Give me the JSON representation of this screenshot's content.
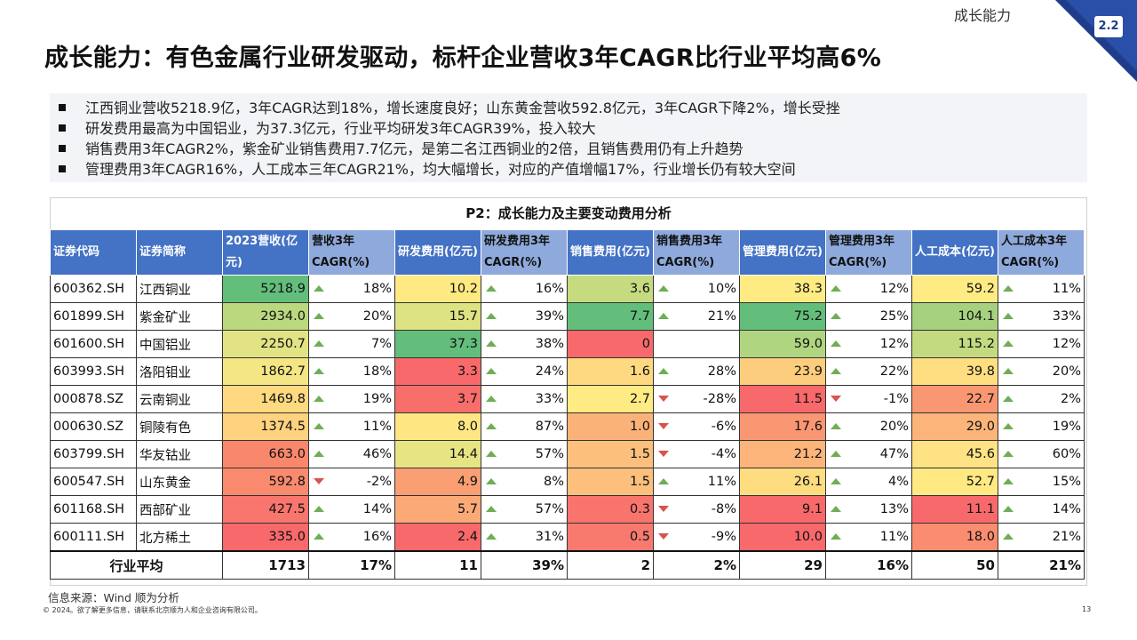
{
  "header": {
    "section_label": "成长能力",
    "section_number": "2.2",
    "title": "成长能力：有色金属行业研发驱动，标杆企业营收3年CAGR比行业平均高6%"
  },
  "bullets": [
    "江西铜业营收5218.9亿，3年CAGR达到18%，增长速度良好；山东黄金营收592.8亿元，3年CAGR下降2%，增长受挫",
    "研发费用最高为中国铝业，为37.3亿元，行业平均研发3年CAGR39%，投入较大",
    "销售费用3年CAGR2%，紫金矿业销售费用7.7亿元，是第二名江西铜业的2倍，且销售费用仍有上升趋势",
    "管理费用3年CAGR16%，人工成本三年CAGR21%，均大幅增长，对应的产值增幅17%，行业增长仍有较大空间"
  ],
  "table": {
    "title": "P2：成长能力及主要变动费用分析",
    "headers": [
      "证券代码",
      "证券简称",
      "2023营收(亿元)",
      "营收3年CAGR(%)",
      "研发费用(亿元)",
      "研发费用3年CAGR(%)",
      "销售费用(亿元)",
      "销售费用3年CAGR(%)",
      "管理费用(亿元)",
      "管理费用3年CAGR(%)",
      "人工成本(亿元)",
      "人工成本3年CAGR(%)"
    ],
    "rows": [
      [
        "600362.SH",
        "江西铜业",
        "5218.9",
        "18%",
        "10.2",
        "16%",
        "3.6",
        "10%",
        "38.3",
        "12%",
        "59.2",
        "11%"
      ],
      [
        "601899.SH",
        "紫金矿业",
        "2934.0",
        "20%",
        "15.7",
        "39%",
        "7.7",
        "21%",
        "75.2",
        "25%",
        "104.1",
        "33%"
      ],
      [
        "601600.SH",
        "中国铝业",
        "2250.7",
        "7%",
        "37.3",
        "38%",
        "0",
        "",
        "59.0",
        "12%",
        "115.2",
        "12%"
      ],
      [
        "603993.SH",
        "洛阳钼业",
        "1862.7",
        "18%",
        "3.3",
        "24%",
        "1.6",
        "28%",
        "23.9",
        "22%",
        "39.8",
        "20%"
      ],
      [
        "000878.SZ",
        "云南铜业",
        "1469.8",
        "19%",
        "3.7",
        "33%",
        "2.7",
        "-28%",
        "11.5",
        "-1%",
        "22.7",
        "2%"
      ],
      [
        "000630.SZ",
        "铜陵有色",
        "1374.5",
        "11%",
        "8.0",
        "87%",
        "1.0",
        "-6%",
        "17.6",
        "20%",
        "29.0",
        "19%"
      ],
      [
        "603799.SH",
        "华友钴业",
        "663.0",
        "46%",
        "14.4",
        "57%",
        "1.5",
        "-4%",
        "21.2",
        "47%",
        "45.6",
        "60%"
      ],
      [
        "600547.SH",
        "山东黄金",
        "592.8",
        "-2%",
        "4.9",
        "8%",
        "1.5",
        "11%",
        "26.1",
        "4%",
        "52.7",
        "15%"
      ],
      [
        "601168.SH",
        "西部矿业",
        "427.5",
        "14%",
        "5.7",
        "57%",
        "0.3",
        "-8%",
        "9.1",
        "13%",
        "11.1",
        "14%"
      ],
      [
        "600111.SH",
        "北方稀土",
        "335.0",
        "16%",
        "2.4",
        "31%",
        "0.5",
        "-9%",
        "10.0",
        "11%",
        "18.0",
        "21%"
      ]
    ],
    "arrow_directions": [
      [
        "up",
        "up",
        "up",
        "up",
        "up"
      ],
      [
        "up",
        "up",
        "up",
        "up",
        "up"
      ],
      [
        "up",
        "up",
        "",
        "up",
        "up"
      ],
      [
        "up",
        "up",
        "up",
        "up",
        "up"
      ],
      [
        "up",
        "up",
        "down",
        "down",
        "up"
      ],
      [
        "up",
        "up",
        "down",
        "up",
        "up"
      ],
      [
        "up",
        "up",
        "down",
        "up",
        "up"
      ],
      [
        "down",
        "up",
        "up",
        "up",
        "up"
      ],
      [
        "up",
        "up",
        "down",
        "up",
        "up"
      ],
      [
        "up",
        "up",
        "down",
        "up",
        "up"
      ]
    ],
    "cell_colors": {
      "revenue": [
        "#63be7b",
        "#bcd87f",
        "#e2e383",
        "#f5e685",
        "#fed980",
        "#fed27f",
        "#f9876c",
        "#f98a6d",
        "#f8766d",
        "#f8696b"
      ],
      "rd": [
        "#fee982",
        "#dde282",
        "#63be7b",
        "#f8696b",
        "#f86e6b",
        "#fee783",
        "#e6e483",
        "#fa9e74",
        "#fbaa77",
        "#f8696b"
      ],
      "sales": [
        "#c6db80",
        "#63be7b",
        "#f8696b",
        "#fed981",
        "#ffeb84",
        "#fbb279",
        "#fcc07c",
        "#fcc07c",
        "#f8746d",
        "#f8796e"
      ],
      "admin": [
        "#ffeb84",
        "#63be7b",
        "#b0d580",
        "#fdcd7e",
        "#f8696b",
        "#fa9773",
        "#fcb47a",
        "#fedd81",
        "#f8696b",
        "#f8696b"
      ],
      "labor": [
        "#ffeb84",
        "#a6d27f",
        "#c4da80",
        "#fede81",
        "#fa9773",
        "#fcb47a",
        "#fee283",
        "#fee983",
        "#f8696b",
        "#fa8d70"
      ]
    },
    "average": {
      "label": "行业平均",
      "values": [
        "1713",
        "17%",
        "11",
        "39%",
        "2",
        "2%",
        "29",
        "16%",
        "50",
        "21%"
      ]
    }
  },
  "footer": {
    "source": "信息来源：Wind 顺为分析",
    "copyright": "© 2024。欲了解更多信息，请联系北京顺为人和企业咨询有限公司。",
    "page_number": "13"
  },
  "colors": {
    "header_blue": "#4472c4",
    "header_light_blue": "#8ea9db",
    "accent_navy": "#1f3d8a",
    "arrow_up": "#6fae54",
    "arrow_down": "#d9534f"
  }
}
